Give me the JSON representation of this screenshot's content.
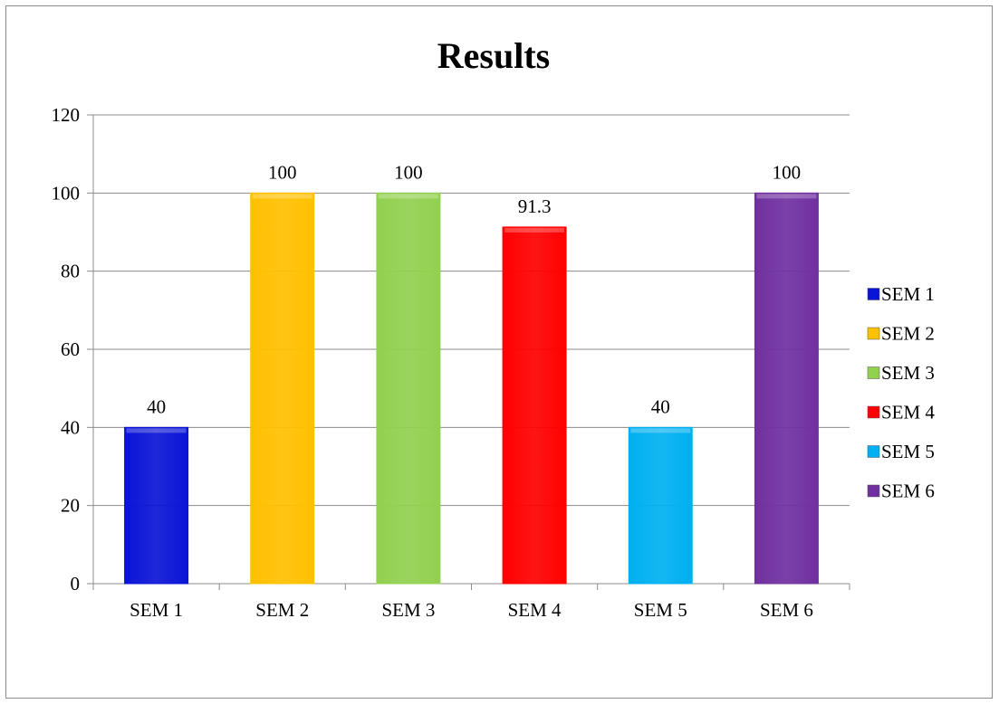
{
  "chart_data": {
    "type": "bar",
    "title": "Results",
    "categories": [
      "SEM 1",
      "SEM 2",
      "SEM 3",
      "SEM 4",
      "SEM 5",
      "SEM 6"
    ],
    "values": [
      40,
      100,
      100,
      91.3,
      40,
      100
    ],
    "data_labels": [
      "40",
      "100",
      "100",
      "91.3",
      "40",
      "100"
    ],
    "colors": [
      "#0a14d6",
      "#ffc000",
      "#92d050",
      "#ff0000",
      "#00b0f0",
      "#7030a0"
    ],
    "ylim": [
      0,
      120
    ],
    "y_ticks": [
      0,
      20,
      40,
      60,
      80,
      100,
      120
    ],
    "y_tick_labels": [
      "0",
      "20",
      "40",
      "60",
      "80",
      "100",
      "120"
    ],
    "grid": true,
    "legend": {
      "position": "right",
      "entries": [
        "SEM 1",
        "SEM 2",
        "SEM 3",
        "SEM 4",
        "SEM 5",
        "SEM 6"
      ]
    }
  }
}
